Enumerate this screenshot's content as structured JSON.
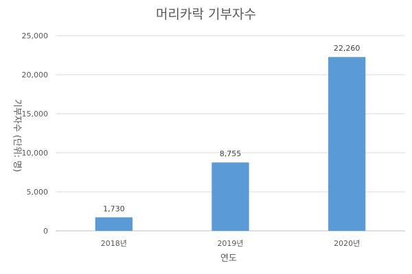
{
  "chart_data": {
    "type": "bar",
    "title": "머리카락 기부자수",
    "xlabel": "연도",
    "ylabel": "기부자수 (단위: 명)",
    "categories": [
      "2018년",
      "2019년",
      "2020년"
    ],
    "values": [
      1730,
      8755,
      22260
    ],
    "data_labels": [
      "1,730",
      "8,755",
      "22,260"
    ],
    "ylim": [
      0,
      25000
    ],
    "yticks": [
      0,
      5000,
      10000,
      15000,
      20000,
      25000
    ],
    "ytick_labels": [
      "0",
      "5,000",
      "10,000",
      "15,000",
      "20,000",
      "25,000"
    ],
    "grid": true,
    "legend": "none",
    "colors": {
      "bar": "#5b9bd5",
      "grid": "#d9d9d9",
      "text": "#595959"
    }
  }
}
